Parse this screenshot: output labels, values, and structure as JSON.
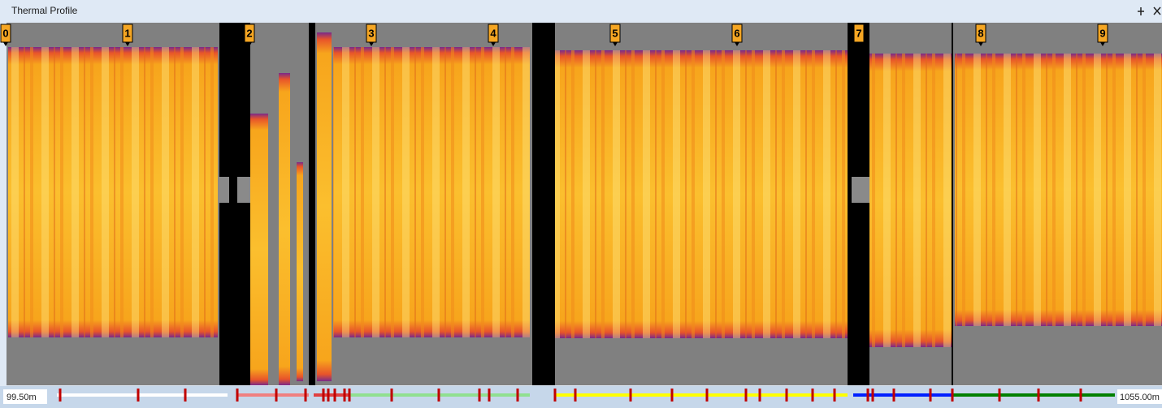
{
  "window": {
    "title": "Thermal Profile"
  },
  "markers": [
    "0",
    "1",
    "2",
    "3",
    "4",
    "5",
    "6",
    "7",
    "8",
    "9"
  ],
  "range": {
    "start": "99.50m",
    "end": "1055.00m"
  }
}
